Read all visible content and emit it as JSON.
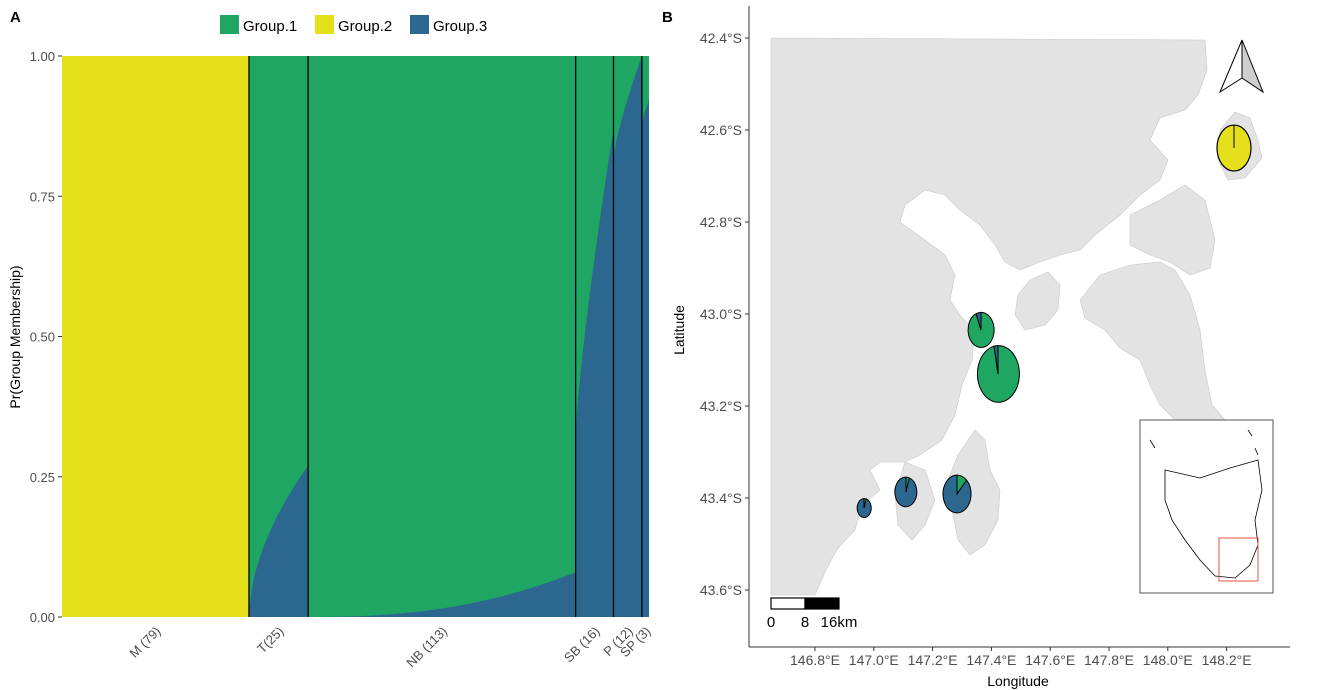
{
  "chart_data": [
    {
      "panel": "A",
      "type": "area",
      "ylabel": "Pr(Group Membership)",
      "xlabel": "",
      "ylim": [
        0,
        1
      ],
      "yticks": [
        "0.00",
        "0.25",
        "0.50",
        "0.75",
        "1.00"
      ],
      "legend_position": "top",
      "series": [
        {
          "name": "Group.1",
          "color": "#1ea662"
        },
        {
          "name": "Group.2",
          "color": "#e6e01c"
        },
        {
          "name": "Group.3",
          "color": "#2c6790"
        }
      ],
      "populations": [
        {
          "label": "M (79)",
          "n": 79,
          "group3_start": 0.0,
          "group3_end": 0.0,
          "group1_base": 0.0
        },
        {
          "label": "T(25)",
          "n": 25,
          "group3_start": 0.0,
          "group3_end": 0.27,
          "group1_base": 1.0
        },
        {
          "label": "NB (113)",
          "n": 113,
          "group3_start": 0.0,
          "group3_end": 0.08,
          "group1_base": 1.0
        },
        {
          "label": "SB (16)",
          "n": 16,
          "group3_start": 0.33,
          "group3_end": 0.87,
          "group1_base": 1.0
        },
        {
          "label": "P (12)",
          "n": 12,
          "group3_start": 0.82,
          "group3_end": 1.0,
          "group1_base": 1.0
        },
        {
          "label": "SP (3)",
          "n": 3,
          "group3_start": 0.88,
          "group3_end": 0.92,
          "group1_base": 1.0
        }
      ]
    },
    {
      "panel": "B",
      "type": "map",
      "xlabel": "Longitude",
      "ylabel": "Latitude",
      "xticks": [
        "146.8°E",
        "147.0°E",
        "147.2°E",
        "147.4°E",
        "147.6°E",
        "147.8°E",
        "148.0°E",
        "148.2°E"
      ],
      "yticks": [
        "42.4°S",
        "42.6°S",
        "42.8°S",
        "43.0°S",
        "43.2°S",
        "43.4°S",
        "43.6°S"
      ],
      "scale_bar": {
        "labels": [
          "0",
          "8",
          "16km"
        ]
      },
      "pies": [
        {
          "lon": 148.08,
          "lat": -42.64,
          "group1": 0.0,
          "group2": 1.0,
          "group3": 0.0
        },
        {
          "lon": 147.32,
          "lat": -43.04,
          "group1": 0.94,
          "group2": 0.0,
          "group3": 0.06
        },
        {
          "lon": 147.37,
          "lat": -43.13,
          "group1": 0.97,
          "group2": 0.0,
          "group3": 0.03
        },
        {
          "lon": 146.97,
          "lat": -43.42,
          "group1": 0.05,
          "group2": 0.0,
          "group3": 0.95
        },
        {
          "lon": 147.09,
          "lat": -43.39,
          "group1": 0.05,
          "group2": 0.0,
          "group3": 0.95
        },
        {
          "lon": 147.25,
          "lat": -43.4,
          "group1": 0.12,
          "group2": 0.0,
          "group3": 0.88
        }
      ]
    }
  ]
}
